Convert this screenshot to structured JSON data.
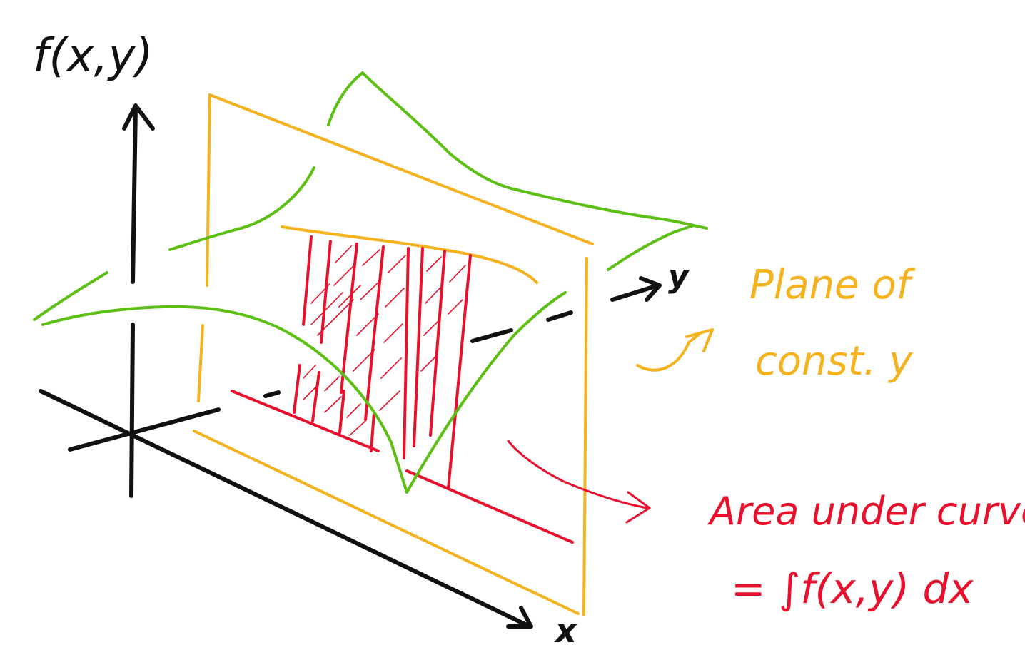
{
  "labels": {
    "z_axis": "f(x,y)",
    "y_axis": "y",
    "x_axis": "x",
    "plane_line1": "Plane of",
    "plane_line2": "const. y",
    "area_line1": "Area under curve",
    "area_line2": "= ∫f(x,y) dx"
  },
  "colors": {
    "axes": "#111111",
    "plane": "#f5b21f",
    "surface": "#5cbf14",
    "area": "#e8112d"
  }
}
